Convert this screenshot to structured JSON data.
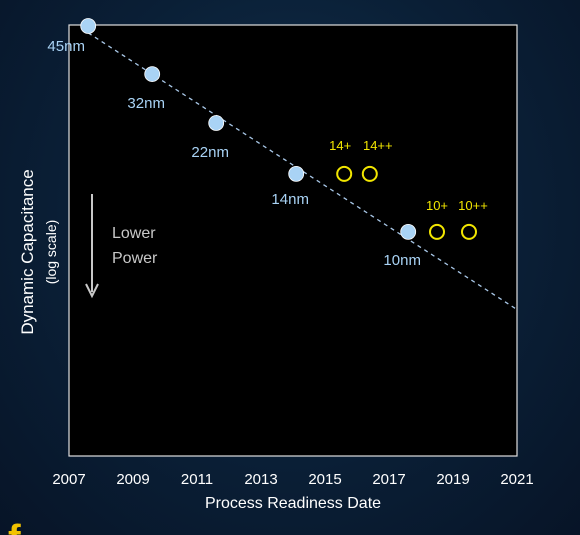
{
  "chart_data": {
    "type": "scatter",
    "xlabel": "Process Readiness Date",
    "ylabel": "Dynamic Capacitance",
    "ylabel_sub": "(log scale)",
    "xlim": [
      2007,
      2021
    ],
    "x_ticks": [
      "2007",
      "2009",
      "2011",
      "2013",
      "2015",
      "2017",
      "2019",
      "2021"
    ],
    "y_scale": "log",
    "grid": false,
    "series": [
      {
        "role": "process_nodes",
        "marker": "filled-circle",
        "color": "#a9d3f5",
        "label_color": "#a9d3f5",
        "points": [
          {
            "x": 2007.6,
            "y": 1.0,
            "label": "45nm"
          },
          {
            "x": 2009.6,
            "y": 0.73,
            "label": "32nm"
          },
          {
            "x": 2011.6,
            "y": 0.53,
            "label": "22nm"
          },
          {
            "x": 2014.1,
            "y": 0.38,
            "label": "14nm"
          },
          {
            "x": 2017.6,
            "y": 0.26,
            "label": "10nm"
          }
        ]
      },
      {
        "role": "optimizations",
        "marker": "open-circle",
        "color": "#f2e600",
        "label_color": "#f2e600",
        "points": [
          {
            "x": 2015.6,
            "y": 0.38,
            "label": "14+"
          },
          {
            "x": 2016.4,
            "y": 0.38,
            "label": "14++"
          },
          {
            "x": 2018.5,
            "y": 0.26,
            "label": "10+"
          },
          {
            "x": 2019.5,
            "y": 0.26,
            "label": "10++"
          }
        ]
      }
    ],
    "trendline": {
      "style": "dashed",
      "color": "#a9c8e8",
      "x_start": 2007.6,
      "x_end": 2021
    },
    "annotation": {
      "line1": "Lower",
      "line2": "Power",
      "arrow": "down"
    },
    "colors": {
      "plot_bg": "#000000",
      "plot_border": "#e0e0e0",
      "text": "#ffffff",
      "annotation_text": "#c8c8c8"
    }
  }
}
